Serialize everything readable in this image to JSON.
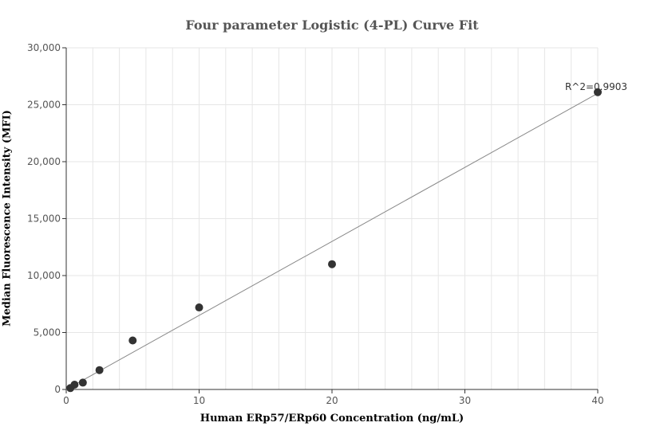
{
  "chart_data": {
    "type": "scatter",
    "title": "Four parameter Logistic (4-PL) Curve Fit",
    "xlabel": "Human ERp57/ERp60 Concentration (ng/mL)",
    "ylabel": "Median Fluorescence Intensity (MFI)",
    "xlim": [
      0,
      40
    ],
    "ylim": [
      0,
      30000
    ],
    "x_ticks": [
      "0",
      "10",
      "20",
      "30",
      "40"
    ],
    "y_ticks": [
      "0",
      "5,000",
      "10,000",
      "15,000",
      "20,000",
      "25,000",
      "30,000"
    ],
    "grid": true,
    "points": [
      {
        "x": 0.31,
        "y": 120
      },
      {
        "x": 0.625,
        "y": 420
      },
      {
        "x": 1.25,
        "y": 600
      },
      {
        "x": 2.5,
        "y": 1700
      },
      {
        "x": 5,
        "y": 4300
      },
      {
        "x": 10,
        "y": 7200
      },
      {
        "x": 20,
        "y": 11000
      },
      {
        "x": 40,
        "y": 26100
      }
    ],
    "fit_line": {
      "x": [
        0,
        40
      ],
      "y": [
        0,
        26000
      ]
    },
    "annotation": "R^2=0.9903",
    "colors": {
      "points": "#333333",
      "fit_line": "#888888",
      "grid": "#e6e6e6",
      "axis": "#333333"
    }
  }
}
